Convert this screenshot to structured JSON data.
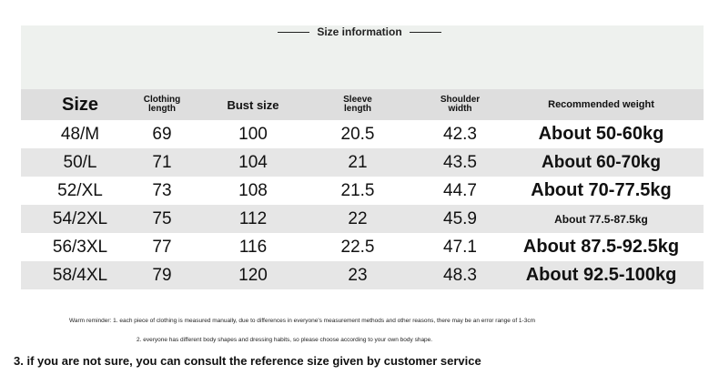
{
  "title": "Size information",
  "headers": {
    "size": "Size",
    "clothing_length": "Clothing length",
    "bust_size": "Bust size",
    "sleeve_length": "Sleeve length",
    "shoulder_width": "Shoulder width",
    "recommended_weight": "Recommended weight"
  },
  "rows": [
    {
      "size": "48/M",
      "length": "69",
      "bust": "100",
      "sleeve": "20.5",
      "shoulder": "42.3",
      "weight": "About 50-60kg"
    },
    {
      "size": "50/L",
      "length": "71",
      "bust": "104",
      "sleeve": "21",
      "shoulder": "43.5",
      "weight": "About 60-70kg"
    },
    {
      "size": "52/XL",
      "length": "73",
      "bust": "108",
      "sleeve": "21.5",
      "shoulder": "44.7",
      "weight": "About 70-77.5kg"
    },
    {
      "size": "54/2XL",
      "length": "75",
      "bust": "112",
      "sleeve": "22",
      "shoulder": "45.9",
      "weight": "About 77.5-87.5kg"
    },
    {
      "size": "56/3XL",
      "length": "77",
      "bust": "116",
      "sleeve": "22.5",
      "shoulder": "47.1",
      "weight": "About 87.5-92.5kg"
    },
    {
      "size": "58/4XL",
      "length": "79",
      "bust": "120",
      "sleeve": "23",
      "shoulder": "48.3",
      "weight": "About 92.5-100kg"
    }
  ],
  "notes": {
    "note1": "Warm reminder: 1. each piece of clothing is measured manually, due to differences in everyone's measurement methods and other reasons, there may be an error range of 1-3cm",
    "note2": "2. everyone has different body shapes and dressing habits, so please choose according to your own body shape.",
    "note3": "3. if you are not sure, you can consult the reference size given by customer service"
  },
  "colors": {
    "header_band": "#eef1ee",
    "table_header": "#dedede",
    "shaded_row": "#e6e6e6"
  }
}
